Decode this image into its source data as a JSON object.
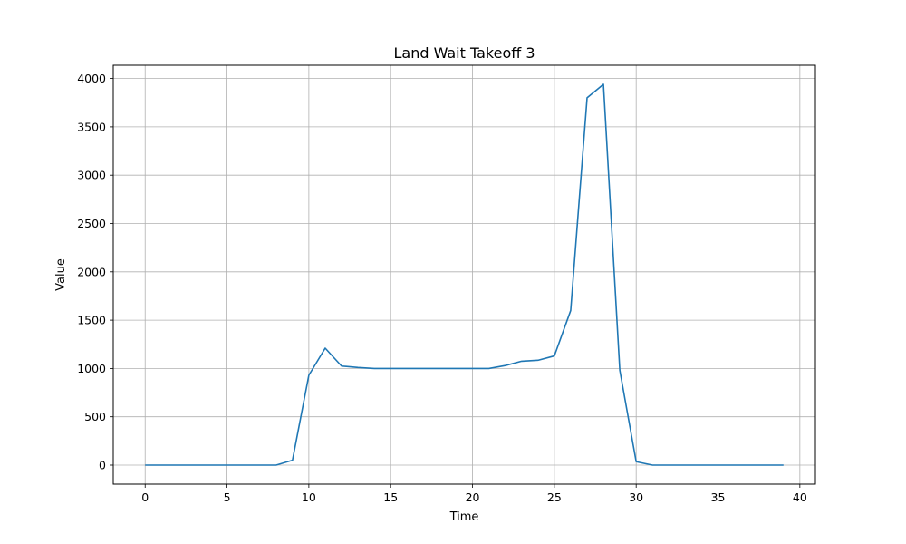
{
  "chart_data": {
    "type": "line",
    "title": "Land Wait Takeoff 3",
    "xlabel": "Time",
    "ylabel": "Value",
    "xlim": [
      -1.95,
      40.95
    ],
    "ylim": [
      -197,
      4137
    ],
    "xticks": [
      0,
      5,
      10,
      15,
      20,
      25,
      30,
      35,
      40
    ],
    "yticks": [
      0,
      500,
      1000,
      1500,
      2000,
      2500,
      3000,
      3500,
      4000
    ],
    "grid": true,
    "legend": false,
    "series": [
      {
        "color": "#1f77b4",
        "x": [
          0,
          1,
          2,
          3,
          4,
          5,
          6,
          7,
          8,
          9,
          10,
          11,
          12,
          13,
          14,
          15,
          16,
          17,
          18,
          19,
          20,
          21,
          22,
          23,
          24,
          25,
          26,
          27,
          28,
          29,
          30,
          31,
          32,
          33,
          34,
          35,
          36,
          37,
          38,
          39
        ],
        "y": [
          0,
          0,
          0,
          0,
          0,
          0,
          0,
          0,
          0,
          50,
          930,
          1210,
          1025,
          1010,
          1000,
          1000,
          1000,
          1000,
          1000,
          1000,
          1000,
          1000,
          1030,
          1075,
          1085,
          1130,
          1600,
          3800,
          3940,
          980,
          35,
          0,
          0,
          0,
          0,
          0,
          0,
          0,
          0,
          0
        ]
      }
    ]
  }
}
